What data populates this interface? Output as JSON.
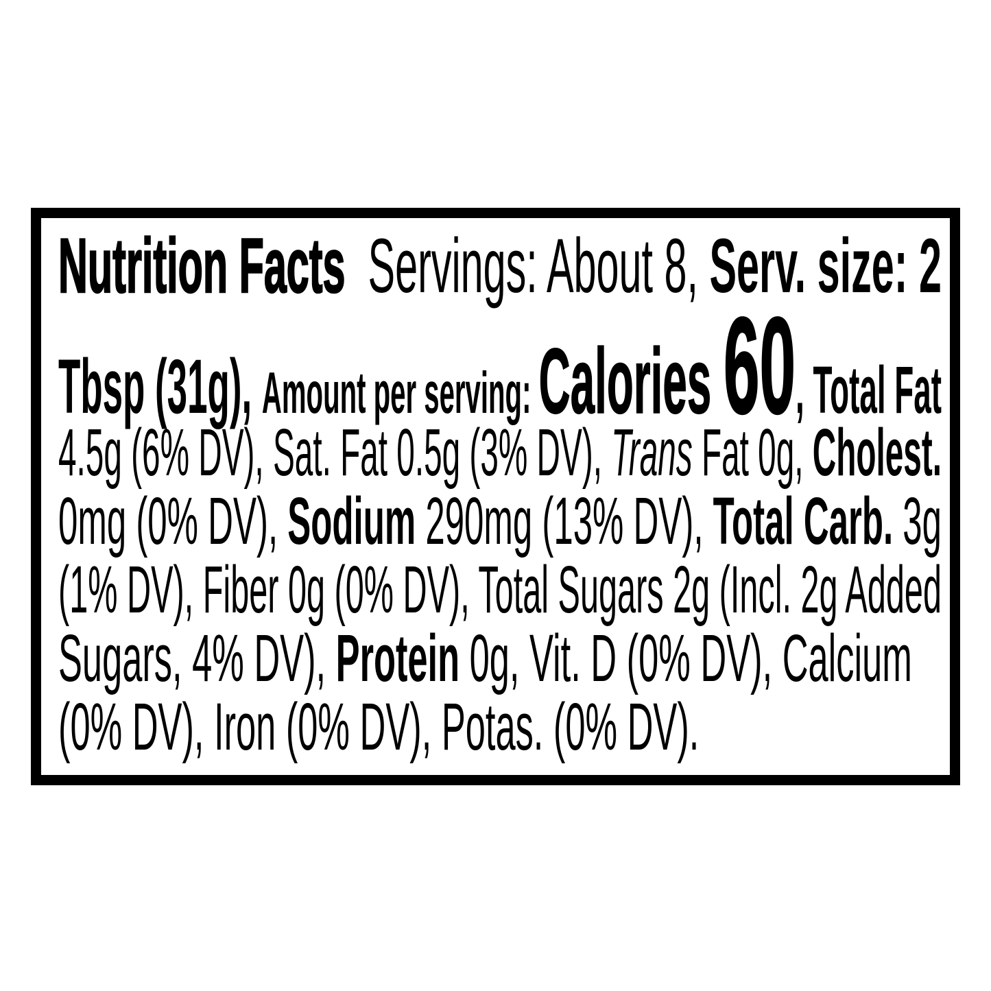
{
  "label": {
    "border_color": "#000000",
    "text_color": "#000000",
    "background_color": "#ffffff",
    "lines": {
      "l1": {
        "title": "Nutrition Facts",
        "servings": "  Servings: About 8, ",
        "serv_size": "Serv. size: 2"
      },
      "l2": {
        "tbsp": "Tbsp (31g), ",
        "amount_per_serving": "Amount per serving: ",
        "calories_label": "Calories ",
        "calories_value": "60",
        "total_fat": ", Total Fat"
      },
      "l3": {
        "fat_values": "4.5g (6% DV), Sat. Fat 0.5g (3% DV), ",
        "trans_word": "Trans",
        "trans_rest": " Fat 0g, ",
        "cholest": "Cholest."
      },
      "l4": {
        "cholest_value": "0mg (0% DV), ",
        "sodium": "Sodium",
        "sodium_value": " 290mg (13% DV), ",
        "total_carb": "Total Carb.",
        "carb_value": " 3g"
      },
      "l5": {
        "text": "(1% DV), Fiber 0g (0% DV), Total Sugars 2g (Incl. 2g Added"
      },
      "l6": {
        "sugars": "Sugars, 4% DV), ",
        "protein": "Protein",
        "protein_rest": " 0g, Vit. D (0% DV), Calcium"
      },
      "l7": {
        "text": "(0% DV), Iron (0% DV), Potas. (0% DV)."
      }
    }
  }
}
